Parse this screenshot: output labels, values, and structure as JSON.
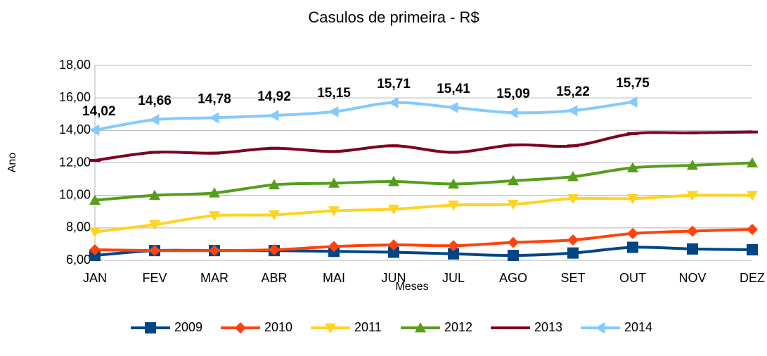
{
  "chart_data": {
    "type": "line",
    "title": "Casulos de primeira - R$",
    "x_label": "Meses",
    "y_label": "Ano",
    "categories": [
      "JAN",
      "FEV",
      "MAR",
      "ABR",
      "MAI",
      "JUN",
      "JUL",
      "AGO",
      "SET",
      "OUT",
      "NOV",
      "DEZ"
    ],
    "ylim": [
      6,
      18
    ],
    "yticks": [
      {
        "value": 6,
        "label": "6,00"
      },
      {
        "value": 8,
        "label": "8,00"
      },
      {
        "value": 10,
        "label": "10,00"
      },
      {
        "value": 12,
        "label": "12,00"
      },
      {
        "value": 14,
        "label": "14,00"
      },
      {
        "value": 16,
        "label": "16,00"
      },
      {
        "value": 18,
        "label": "18,00"
      }
    ],
    "grid": true,
    "smooth": true,
    "legend": "bottom",
    "series": [
      {
        "name": "2009",
        "color": "#004586",
        "marker": "square",
        "values": [
          6.3,
          6.6,
          6.6,
          6.6,
          6.55,
          6.5,
          6.4,
          6.3,
          6.45,
          6.8,
          6.7,
          6.65
        ]
      },
      {
        "name": "2010",
        "color": "#ff420e",
        "marker": "diamond",
        "values": [
          6.65,
          6.6,
          6.6,
          6.65,
          6.85,
          6.95,
          6.9,
          7.1,
          7.25,
          7.65,
          7.8,
          7.9
        ]
      },
      {
        "name": "2011",
        "color": "#ffd320",
        "marker": "triangle-down",
        "values": [
          7.75,
          8.2,
          8.75,
          8.8,
          9.05,
          9.15,
          9.4,
          9.45,
          9.8,
          9.8,
          10.0,
          10.0
        ]
      },
      {
        "name": "2012",
        "color": "#579d1c",
        "marker": "triangle-up",
        "values": [
          9.7,
          10.0,
          10.15,
          10.65,
          10.75,
          10.85,
          10.7,
          10.9,
          11.15,
          11.7,
          11.85,
          12.0
        ]
      },
      {
        "name": "2013",
        "color": "#7e0021",
        "marker": "bar",
        "values": [
          12.15,
          12.65,
          12.6,
          12.9,
          12.7,
          13.05,
          12.65,
          13.1,
          13.05,
          13.8,
          13.85,
          13.9
        ]
      },
      {
        "name": "2014",
        "color": "#83caff",
        "marker": "triangle-left",
        "values": [
          14.02,
          14.66,
          14.78,
          14.92,
          15.15,
          15.71,
          15.41,
          15.09,
          15.22,
          15.75,
          null,
          null
        ],
        "value_labels": [
          "14,02",
          "14,66",
          "14,78",
          "14,92",
          "15,15",
          "15,71",
          "15,41",
          "15,09",
          "15,22",
          "15,75",
          null,
          null
        ]
      }
    ]
  }
}
